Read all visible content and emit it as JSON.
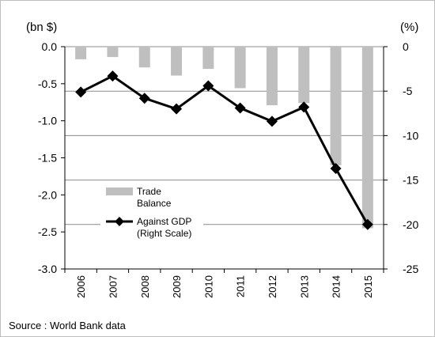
{
  "chart_data": {
    "type": "bar",
    "categories": [
      "2006",
      "2007",
      "2008",
      "2009",
      "2010",
      "2011",
      "2012",
      "2013",
      "2014",
      "2015"
    ],
    "series": [
      {
        "name": "Trade Balance",
        "type": "bar",
        "axis": "left",
        "color": "#bfbfbf",
        "values": [
          -0.17,
          -0.14,
          -0.28,
          -0.39,
          -0.3,
          -0.56,
          -0.79,
          -0.76,
          -1.6,
          -2.45
        ]
      },
      {
        "name": "Against GDP (Right Scale)",
        "type": "line",
        "axis": "right",
        "color": "#000000",
        "marker": "diamond",
        "values": [
          -5.1,
          -3.3,
          -5.8,
          -7.0,
          -4.4,
          -6.9,
          -8.4,
          -6.8,
          -13.7,
          -20.0
        ]
      }
    ],
    "left_axis": {
      "label": "(bn $)",
      "ylim": [
        -3.0,
        0.0
      ],
      "ticks": [
        "0.0",
        "-0.5",
        "-1.0",
        "-1.5",
        "-2.0",
        "-2.5",
        "-3.0"
      ]
    },
    "right_axis": {
      "label": "(%)",
      "ylim": [
        -25,
        0
      ],
      "ticks": [
        "0",
        "-5",
        "-10",
        "-15",
        "-20",
        "-25"
      ]
    },
    "legend": {
      "placement": "lower-left",
      "entries": [
        {
          "lines": [
            "Trade",
            "Balance"
          ]
        },
        {
          "lines": [
            "Against GDP",
            "(Right Scale)"
          ]
        }
      ]
    },
    "grid": "horizontal",
    "xlabel_orientation": "vertical"
  },
  "source": "Source : World Bank data"
}
